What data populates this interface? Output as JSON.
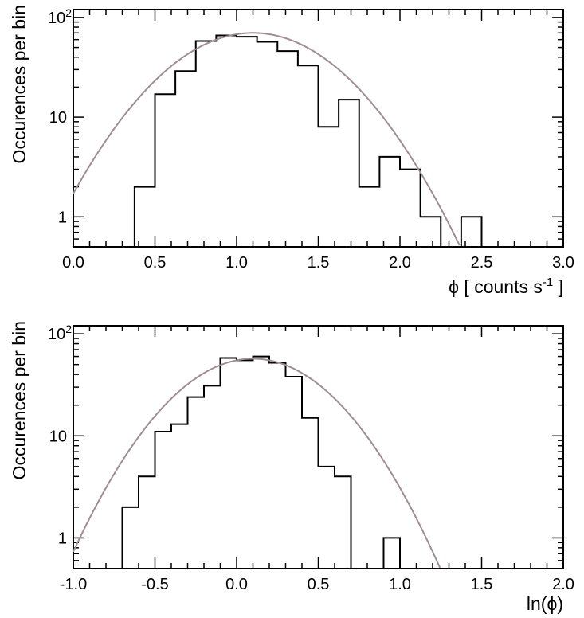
{
  "colors": {
    "histogram": "#000000",
    "fit": "#a08c94",
    "background": "#ffffff"
  },
  "chart_data": [
    {
      "type": "histogram",
      "xlabel_main": "ϕ [ counts s",
      "xlabel_sup": "-1",
      "xlabel_end": " ]",
      "ylabel": "Occurences per bin",
      "xlim": [
        0.0,
        3.0
      ],
      "ylim": [
        0.5,
        120
      ],
      "log_y": true,
      "grid": false,
      "bin_width": 0.125,
      "xticks": [
        {
          "value": 0.0,
          "label": "0.0"
        },
        {
          "value": 0.5,
          "label": "0.5"
        },
        {
          "value": 1.0,
          "label": "1.0"
        },
        {
          "value": 1.5,
          "label": "1.5"
        },
        {
          "value": 2.0,
          "label": "2.0"
        },
        {
          "value": 2.5,
          "label": "2.5"
        },
        {
          "value": 3.0,
          "label": "3.0"
        }
      ],
      "yticks": [
        {
          "value": 1,
          "label": "1"
        },
        {
          "value": 10,
          "label": "10"
        },
        {
          "value": 100,
          "label": "10",
          "sup": "2"
        }
      ],
      "bin_edges": [
        0.0,
        0.125,
        0.25,
        0.375,
        0.5,
        0.625,
        0.75,
        0.875,
        1.0,
        1.125,
        1.25,
        1.375,
        1.5,
        1.625,
        1.75,
        1.875,
        2.0,
        2.125,
        2.25,
        2.375,
        2.5,
        2.625,
        2.75,
        2.875,
        3.0
      ],
      "counts": [
        0,
        0,
        0,
        2,
        17,
        29,
        58,
        66,
        64,
        57,
        46,
        33,
        8,
        15,
        2,
        4,
        3,
        1,
        0,
        1,
        0,
        0,
        0,
        0
      ],
      "fit": {
        "mean": 1.1,
        "peak": 70,
        "sigma_log10": 0.26
      }
    },
    {
      "type": "histogram",
      "xlabel_main": "ln(ϕ)",
      "ylabel": "Occurences per bin",
      "xlim": [
        -1.0,
        2.0
      ],
      "ylim": [
        0.5,
        120
      ],
      "log_y": true,
      "grid": false,
      "bin_width": 0.1,
      "xticks": [
        {
          "value": -1.0,
          "label": "-1.0"
        },
        {
          "value": -0.5,
          "label": "-0.5"
        },
        {
          "value": 0.0,
          "label": "0.0"
        },
        {
          "value": 0.5,
          "label": "0.5"
        },
        {
          "value": 1.0,
          "label": "1.0"
        },
        {
          "value": 1.5,
          "label": "1.5"
        },
        {
          "value": 2.0,
          "label": "2.0"
        }
      ],
      "yticks": [
        {
          "value": 1,
          "label": "1"
        },
        {
          "value": 10,
          "label": "10"
        },
        {
          "value": 100,
          "label": "10",
          "sup": "2"
        }
      ],
      "bin_edges": [
        -0.7,
        -0.6,
        -0.5,
        -0.4,
        -0.3,
        -0.2,
        -0.1,
        0.0,
        0.1,
        0.2,
        0.3,
        0.4,
        0.5,
        0.6,
        0.7,
        0.8,
        0.9,
        1.0
      ],
      "counts": [
        2,
        4,
        11,
        13,
        24,
        31,
        58,
        55,
        60,
        52,
        38,
        15,
        5,
        4,
        0,
        0,
        1
      ],
      "fit": {
        "mean": 0.1,
        "peak": 57,
        "sigma_log10": 0.24
      }
    }
  ]
}
